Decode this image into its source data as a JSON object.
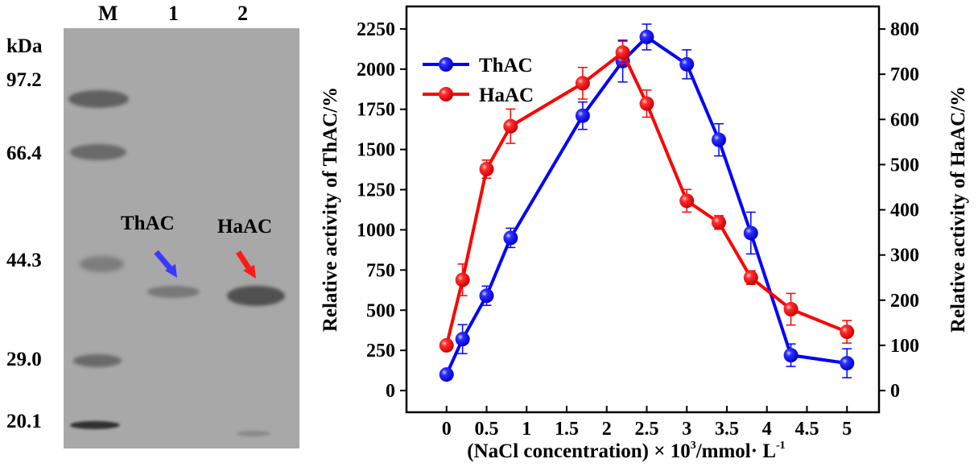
{
  "gel": {
    "lanes": [
      "M",
      "1",
      "2"
    ],
    "unit_label": "kDa",
    "markers": [
      "97.2",
      "66.4",
      "44.3",
      "29.0",
      "20.1"
    ],
    "band_labels": [
      {
        "text": "ThAC",
        "arrow_color": "#3a3aff"
      },
      {
        "text": "HaAC",
        "arrow_color": "#ff1a1a"
      }
    ]
  },
  "chart_data": {
    "type": "line",
    "title": "",
    "xlabel": "(NaCl concentration) × 10³/mmol· L⁻¹",
    "xlabel_parts": {
      "main": "(NaCl concentration) × 10",
      "sup1": "3",
      "mid": "/mmol· L",
      "sup2": "-1"
    },
    "ylabel": "Relative activity of ThAC/%",
    "ylabel_right": "Relative activity of HaAC/%",
    "xlim": [
      -0.5,
      5.4
    ],
    "ylim": [
      -135,
      2390
    ],
    "ylim_right": [
      -48,
      850
    ],
    "x_ticks": [
      "0",
      "0.5",
      "1",
      "1.5",
      "2",
      "2.5",
      "3",
      "3.5",
      "4",
      "4.5",
      "5"
    ],
    "y_ticks": [
      "0",
      "250",
      "500",
      "750",
      "1000",
      "1250",
      "1500",
      "1750",
      "2000",
      "2250"
    ],
    "y_ticks_right": [
      "0",
      "100",
      "200",
      "300",
      "400",
      "500",
      "600",
      "700",
      "800"
    ],
    "legend_position": "top-left",
    "series": [
      {
        "name": "ThAC",
        "axis": "left",
        "color": "#0000ff",
        "x": [
          0,
          0.2,
          0.5,
          0.8,
          1.7,
          2.2,
          2.5,
          3.0,
          3.4,
          3.8,
          4.3,
          5.0
        ],
        "y": [
          100,
          320,
          590,
          950,
          1710,
          2050,
          2200,
          2030,
          1560,
          980,
          220,
          170
        ],
        "err": [
          0,
          90,
          60,
          60,
          85,
          130,
          80,
          90,
          100,
          130,
          70,
          90
        ]
      },
      {
        "name": "HaAC",
        "axis": "right",
        "color": "#ff0000",
        "x": [
          0,
          0.2,
          0.5,
          0.8,
          1.7,
          2.2,
          2.5,
          3.0,
          3.4,
          3.8,
          4.3,
          5.0
        ],
        "y": [
          100,
          245,
          490,
          585,
          680,
          748,
          635,
          420,
          372,
          250,
          180,
          130
        ],
        "err": [
          0,
          35,
          20,
          38,
          35,
          25,
          30,
          25,
          15,
          15,
          35,
          25
        ]
      }
    ]
  }
}
